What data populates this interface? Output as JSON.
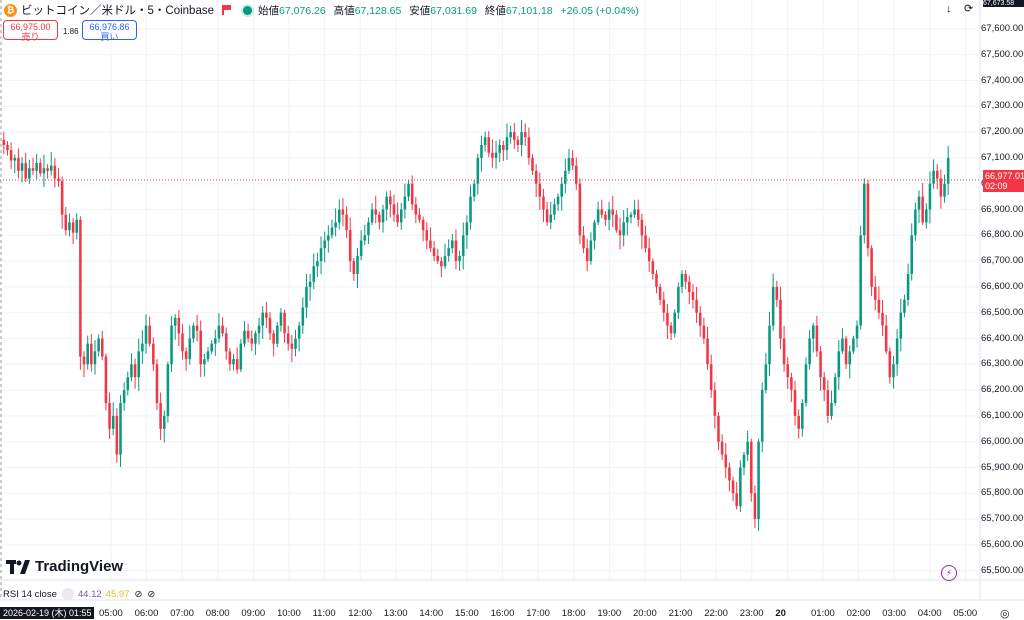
{
  "header": {
    "coin_icon": "bitcoin-icon",
    "symbol": "ビットコイン／米ドル・5・Coinbase",
    "ohlc": [
      {
        "label": "始値",
        "value": "67,076.26"
      },
      {
        "label": "高値",
        "value": "67,128.65"
      },
      {
        "label": "安値",
        "value": "67,031.69"
      },
      {
        "label": "終値",
        "value": "67,101.18"
      }
    ],
    "change": "+26.05 (+0.04%)"
  },
  "trade": {
    "sell_price": "66,975.00",
    "sell_label": "売り",
    "spread": "1.86",
    "buy_price": "66,976.86",
    "buy_label": "買い"
  },
  "price_axis": {
    "labels": [
      "67,600.00",
      "67,500.00",
      "67,400.00",
      "67,300.00",
      "67,200.00",
      "67,100.00",
      "67,000.00",
      "66,900.00",
      "66,800.00",
      "66,700.00",
      "66,600.00",
      "66,500.00",
      "66,400.00",
      "66,300.00",
      "66,200.00",
      "66,100.00",
      "66,000.00",
      "65,900.00",
      "65,800.00",
      "65,700.00",
      "65,600.00",
      "65,500.00"
    ],
    "current_price": "66,977.01",
    "countdown": "02:09",
    "top_partial": "67,673.58"
  },
  "time_axis": {
    "cursor_label": "2026-02-19 (木)  01:55",
    "labels": [
      "05:00",
      "06:00",
      "07:00",
      "08:00",
      "09:00",
      "10:00",
      "11:00",
      "12:00",
      "13:00",
      "14:00",
      "15:00",
      "16:00",
      "17:00",
      "18:00",
      "19:00",
      "20:00",
      "21:00",
      "22:00",
      "23:00",
      "20",
      "01:00",
      "02:00",
      "03:00",
      "04:00",
      "05:00"
    ]
  },
  "indicator": {
    "name": "RSI 14 close",
    "value1": "44.12",
    "value2": "45.97"
  },
  "branding": {
    "logo_text": "TradingView"
  },
  "colors": {
    "up": "#089981",
    "down": "#f23645",
    "accent": "#2962ff"
  },
  "chart_data": {
    "type": "candlestick",
    "ylim": [
      65500,
      67650
    ],
    "closes": [
      67150,
      67130,
      67090,
      67100,
      67050,
      67080,
      67020,
      67060,
      67050,
      67080,
      67040,
      67060,
      67050,
      67070,
      67020,
      67010,
      66880,
      66820,
      66850,
      66810,
      66860,
      66330,
      66300,
      66380,
      66300,
      66350,
      66400,
      66330,
      66150,
      66050,
      66100,
      65950,
      66150,
      66200,
      66250,
      66300,
      66250,
      66350,
      66380,
      66450,
      66380,
      66300,
      66150,
      66050,
      66100,
      66300,
      66450,
      66480,
      66420,
      66350,
      66320,
      66400,
      66450,
      66430,
      66300,
      66320,
      66350,
      66380,
      66400,
      66450,
      66420,
      66350,
      66300,
      66320,
      66280,
      66380,
      66430,
      66400,
      66380,
      66420,
      66450,
      66500,
      66480,
      66420,
      66380,
      66450,
      66500,
      66420,
      66380,
      66360,
      66400,
      66450,
      66520,
      66600,
      66620,
      66680,
      66700,
      66750,
      66780,
      66800,
      66830,
      66850,
      66900,
      66880,
      66820,
      66700,
      66650,
      66720,
      66780,
      66800,
      66850,
      66900,
      66880,
      66850,
      66900,
      66950,
      66920,
      66880,
      66850,
      66900,
      66950,
      67000,
      66920,
      66880,
      66860,
      66820,
      66780,
      66750,
      66720,
      66700,
      66680,
      66720,
      66750,
      66780,
      66700,
      66720,
      66800,
      66850,
      66950,
      67000,
      67100,
      67150,
      67180,
      67120,
      67100,
      67120,
      67150,
      67130,
      67180,
      67200,
      67170,
      67150,
      67200,
      67180,
      67100,
      67050,
      67000,
      66950,
      66900,
      66850,
      66880,
      66920,
      66950,
      67000,
      67050,
      67100,
      67070,
      67000,
      66800,
      66750,
      66700,
      66780,
      66850,
      66900,
      66880,
      66860,
      66900,
      66880,
      66820,
      66800,
      66850,
      66870,
      66880,
      66900,
      66860,
      66800,
      66750,
      66700,
      66650,
      66600,
      66550,
      66500,
      66450,
      66420,
      66500,
      66600,
      66650,
      66620,
      66580,
      66550,
      66500,
      66450,
      66400,
      66300,
      66200,
      66100,
      66000,
      65950,
      65900,
      65850,
      65800,
      65750,
      65900,
      65950,
      66000,
      65800,
      65700,
      66000,
      66200,
      66300,
      66450,
      66600,
      66550,
      66400,
      66300,
      66250,
      66200,
      66100,
      66050,
      66150,
      66300,
      66400,
      66450,
      66350,
      66250,
      66200,
      66100,
      66150,
      66250,
      66350,
      66400,
      66300,
      66350,
      66400,
      66450,
      66800,
      67000,
      66750,
      66600,
      66550,
      66500,
      66450,
      66350,
      66250,
      66300,
      66400,
      66500,
      66550,
      66650,
      66800,
      66900,
      66950,
      66850,
      66900,
      67000,
      67050,
      67020,
      66950,
      67000,
      67100
    ]
  }
}
